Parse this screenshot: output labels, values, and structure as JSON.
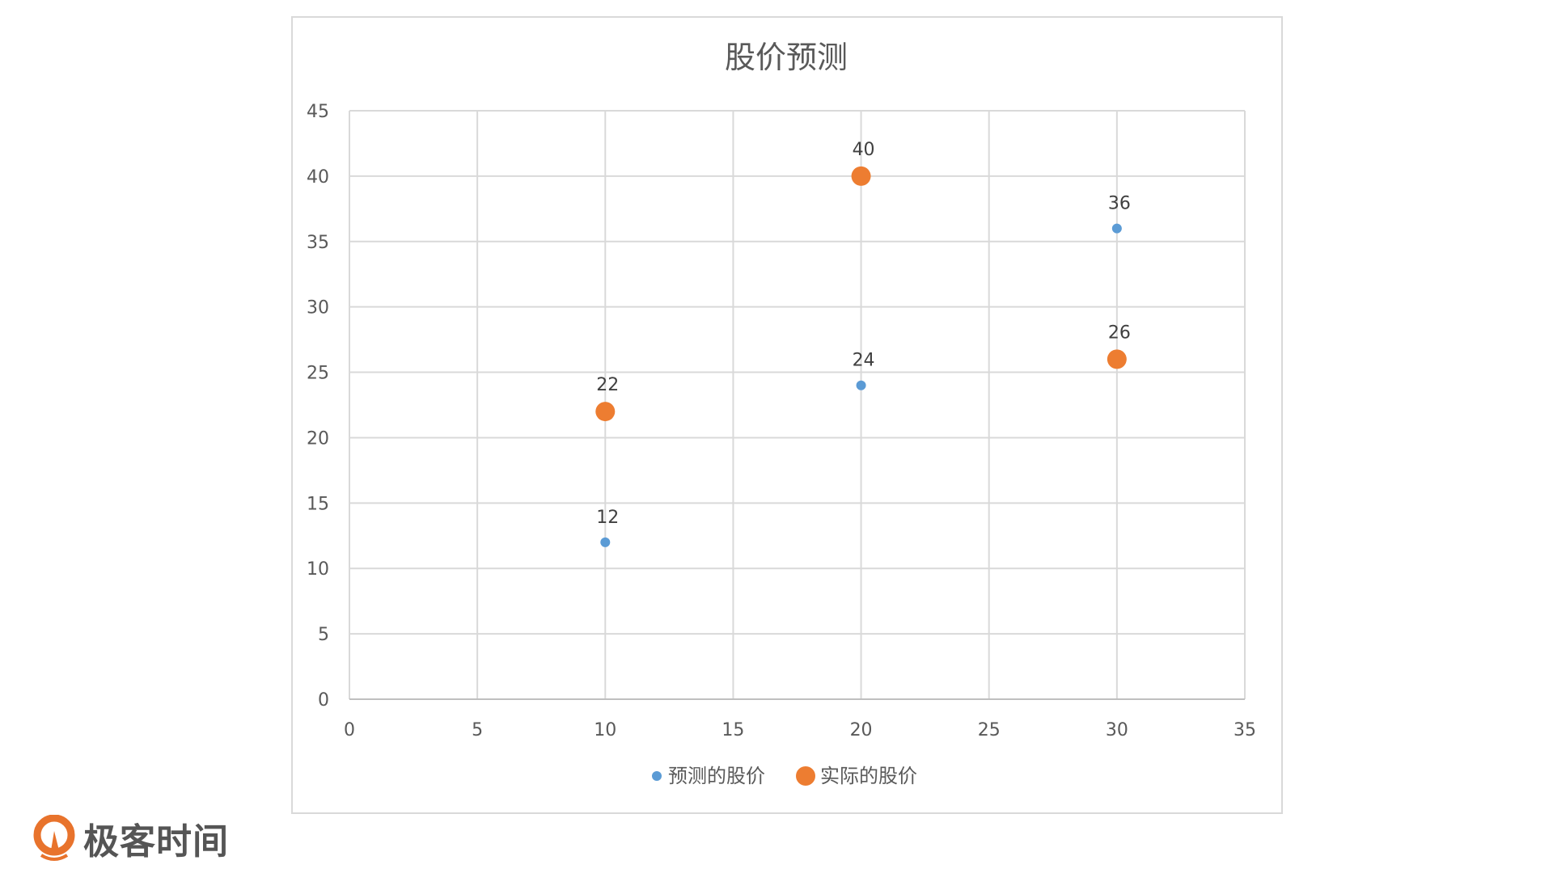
{
  "chart_data": {
    "type": "scatter",
    "title": "股价预测",
    "xlabel": "",
    "ylabel": "",
    "xlim": [
      0,
      35
    ],
    "ylim": [
      0,
      45
    ],
    "xticks": [
      0,
      5,
      10,
      15,
      20,
      25,
      30,
      35
    ],
    "yticks": [
      0,
      5,
      10,
      15,
      20,
      25,
      30,
      35,
      40,
      45
    ],
    "grid": true,
    "legend": "bottom",
    "data_labels": true,
    "series": [
      {
        "name": "预测的股价",
        "color": "#5B9BD5",
        "marker": "small",
        "points": [
          {
            "x": 10,
            "y": 12
          },
          {
            "x": 20,
            "y": 24
          },
          {
            "x": 30,
            "y": 36
          }
        ]
      },
      {
        "name": "实际的股价",
        "color": "#ED7D31",
        "marker": "large",
        "points": [
          {
            "x": 10,
            "y": 22
          },
          {
            "x": 20,
            "y": 40
          },
          {
            "x": 30,
            "y": 26
          }
        ]
      }
    ]
  },
  "logo": {
    "text": "极客时间",
    "color": "#E8732C"
  }
}
